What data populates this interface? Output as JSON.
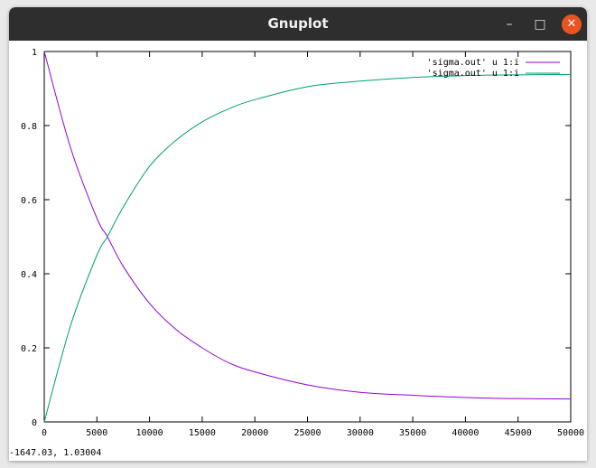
{
  "window": {
    "title": "Gnuplot",
    "minimize_glyph": "–",
    "maximize_glyph": "□",
    "close_glyph": "✕"
  },
  "status": {
    "coordinates": "-1647.03,  1.03004"
  },
  "colors": {
    "series1": "#9400d3",
    "series2": "#009e73",
    "close_button": "#e95420",
    "titlebar": "#2e2e2e"
  },
  "chart_data": {
    "type": "line",
    "title": "",
    "xlabel": "",
    "ylabel": "",
    "xlim": [
      0,
      50000
    ],
    "ylim": [
      0,
      1
    ],
    "grid": false,
    "legend_position": "top-right",
    "x_ticks": [
      0,
      5000,
      10000,
      15000,
      20000,
      25000,
      30000,
      35000,
      40000,
      45000,
      50000
    ],
    "y_ticks": [
      0,
      0.2,
      0.4,
      0.6,
      0.8,
      1
    ],
    "x_tick_labels": [
      "0",
      "5000",
      "10000",
      "15000",
      "20000",
      "25000",
      "30000",
      "35000",
      "40000",
      "45000",
      "50000"
    ],
    "y_tick_labels": [
      "0",
      "0.2",
      "0.4",
      "0.6",
      "0.8",
      "1"
    ],
    "series": [
      {
        "name": "'sigma.out' u 1:i",
        "color": "#9400d3",
        "x": [
          0,
          2500,
          5000,
          6000,
          7500,
          10000,
          12500,
          15000,
          17500,
          20000,
          25000,
          30000,
          35000,
          40000,
          45000,
          50000
        ],
        "y": [
          1.0,
          0.74,
          0.55,
          0.5,
          0.42,
          0.32,
          0.25,
          0.2,
          0.16,
          0.135,
          0.1,
          0.08,
          0.072,
          0.066,
          0.063,
          0.062
        ]
      },
      {
        "name": "'sigma.out' u 1:i",
        "color": "#009e73",
        "x": [
          0,
          2500,
          5000,
          6000,
          7500,
          10000,
          12500,
          15000,
          17500,
          20000,
          25000,
          30000,
          35000,
          40000,
          45000,
          50000
        ],
        "y": [
          0.0,
          0.26,
          0.45,
          0.5,
          0.58,
          0.69,
          0.76,
          0.81,
          0.845,
          0.87,
          0.905,
          0.92,
          0.93,
          0.935,
          0.937,
          0.938
        ]
      }
    ]
  }
}
